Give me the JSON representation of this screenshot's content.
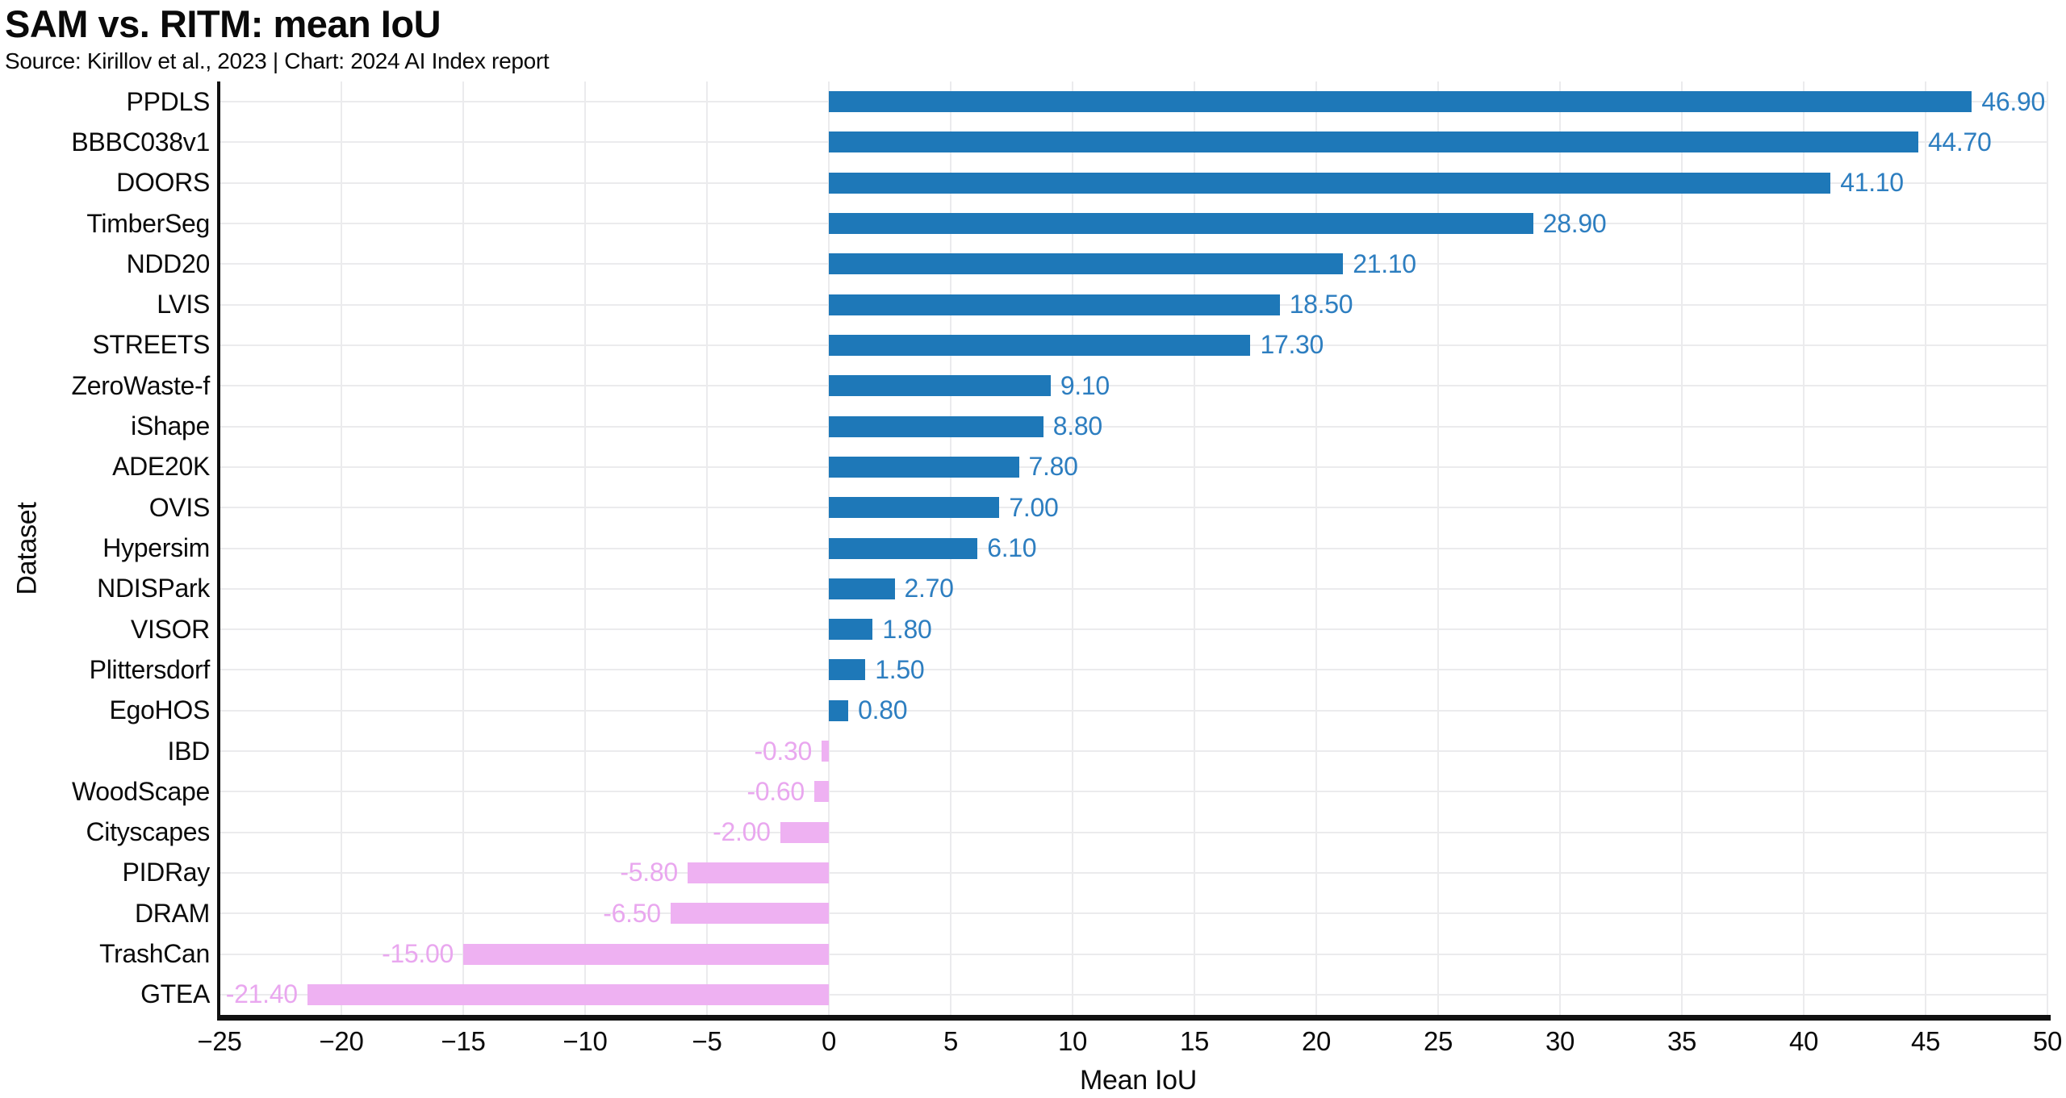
{
  "header": {
    "title": "SAM vs. RITM: mean IoU",
    "subtitle": "Source: Kirillov et al., 2023 | Chart: 2024 AI Index report"
  },
  "chart_data": {
    "type": "bar",
    "orientation": "horizontal",
    "title": "SAM vs. RITM: mean IoU",
    "subtitle": "Source: Kirillov et al., 2023 | Chart: 2024 AI Index report",
    "xlabel": "Mean IoU",
    "ylabel": "Dataset",
    "xlim": [
      -25,
      50
    ],
    "grid": true,
    "legend": "none",
    "categories": [
      "PPDLS",
      "BBBC038v1",
      "DOORS",
      "TimberSeg",
      "NDD20",
      "LVIS",
      "STREETS",
      "ZeroWaste-f",
      "iShape",
      "ADE20K",
      "OVIS",
      "Hypersim",
      "NDISPark",
      "VISOR",
      "Plittersdorf",
      "EgoHOS",
      "IBD",
      "WoodScape",
      "Cityscapes",
      "PIDRay",
      "DRAM",
      "TrashCan",
      "GTEA"
    ],
    "values": [
      46.9,
      44.7,
      41.1,
      28.9,
      21.1,
      18.5,
      17.3,
      9.1,
      8.8,
      7.8,
      7.0,
      6.1,
      2.7,
      1.8,
      1.5,
      0.8,
      -0.3,
      -0.6,
      -2.0,
      -5.8,
      -6.5,
      -15.0,
      -21.4
    ],
    "value_labels": [
      "46.90",
      "44.70",
      "41.10",
      "28.90",
      "21.10",
      "18.50",
      "17.30",
      "9.10",
      "8.80",
      "7.80",
      "7.00",
      "6.10",
      "2.70",
      "1.80",
      "1.50",
      "0.80",
      "-0.30",
      "-0.60",
      "-2.00",
      "-5.80",
      "-6.50",
      "-15.00",
      "-21.40"
    ],
    "xticks": [
      -25,
      -20,
      -15,
      -10,
      -5,
      0,
      5,
      10,
      15,
      20,
      25,
      30,
      35,
      40,
      45,
      50
    ],
    "xtick_labels": [
      "−25",
      "−20",
      "−15",
      "−10",
      "−5",
      "0",
      "5",
      "10",
      "15",
      "20",
      "25",
      "30",
      "35",
      "40",
      "45",
      "50"
    ],
    "colors": {
      "positive_bar": "#1e78b8",
      "negative_bar": "#eeb1f2",
      "positive_label": "#2d7ec0",
      "negative_label": "#e9a7ef",
      "gridline": "#ebebed",
      "axis": "#111111"
    }
  }
}
